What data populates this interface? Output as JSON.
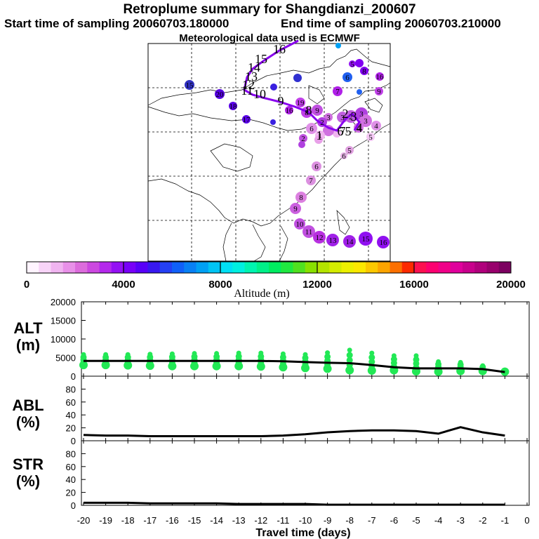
{
  "header": {
    "title": "Retroplume summary for Shangdianzi_200607",
    "start_label": "Start time of sampling 20060703.180000",
    "end_label": "End time of sampling 20060703.210000",
    "met_label": "Meteorological data used is ECMWF"
  },
  "colorbar": {
    "ticks": [
      "0",
      "4000",
      "8000",
      "12000",
      "16000",
      "20000"
    ],
    "label": "Altitude (m)",
    "colors": [
      "#fff4ff",
      "#f8d4f8",
      "#f0b4f0",
      "#e890e8",
      "#dc6cdc",
      "#cc48e0",
      "#b428ec",
      "#9410f4",
      "#7800f8",
      "#5800f8",
      "#3818f0",
      "#2440f4",
      "#1060f8",
      "#0880f4",
      "#00a0f4",
      "#00c4f4",
      "#00e0f4",
      "#00f0e0",
      "#00f4b0",
      "#00f088",
      "#00ec60",
      "#20e840",
      "#50e020",
      "#88e000",
      "#b4e400",
      "#d4ec00",
      "#ecf000",
      "#fce800",
      "#fcc800",
      "#fca400",
      "#fc7000",
      "#fc2a00",
      "#fc1050",
      "#fc0070",
      "#f00088",
      "#e0009c",
      "#c8008c",
      "#b0007c",
      "#98006c",
      "#7c0060"
    ]
  },
  "map": {
    "plume_labels": [
      "1",
      "2",
      "3",
      "4",
      "5",
      "6",
      "7",
      "8",
      "9",
      "10",
      "11",
      "12",
      "13",
      "14",
      "15",
      "16",
      "17",
      "18",
      "19",
      "20"
    ],
    "track_labels": [
      "1",
      "2",
      "3",
      "4",
      "5",
      "6",
      "7",
      "8",
      "9",
      "10",
      "11",
      "12",
      "13",
      "14",
      "15",
      "16"
    ]
  },
  "panels": {
    "alt_label": "ALT\n(m)",
    "abl_label": "ABL\n(%)",
    "str_label": "STR\n(%)",
    "alt_ticks": [
      "20000",
      "15000",
      "10000",
      "5000",
      "0"
    ],
    "pct_ticks": [
      "80",
      "60",
      "40",
      "20",
      "0"
    ],
    "x_ticks": [
      "-20",
      "-19",
      "-18",
      "-17",
      "-16",
      "-15",
      "-14",
      "-13",
      "-12",
      "-11",
      "-10",
      "-9",
      "-8",
      "-7",
      "-6",
      "-5",
      "-4",
      "-3",
      "-2",
      "-1",
      "0"
    ],
    "x_label": "Travel time (days)"
  },
  "chart_data": [
    {
      "type": "line",
      "title": "ALT (m)",
      "x": [
        -20,
        -19,
        -18,
        -17,
        -16,
        -15,
        -14,
        -13,
        -12,
        -11,
        -10,
        -9,
        -8,
        -7,
        -6,
        -5,
        -4,
        -3,
        -2,
        -1
      ],
      "values": [
        4100,
        4100,
        4100,
        4100,
        4100,
        4100,
        4100,
        4100,
        4100,
        4000,
        3800,
        3600,
        3500,
        3000,
        2400,
        2100,
        2100,
        2100,
        1900,
        1100
      ],
      "ylim": [
        0,
        20000
      ],
      "xlim": [
        -20,
        0
      ],
      "scatter_high": [
        5800,
        5800,
        5800,
        5900,
        6000,
        6100,
        6100,
        6200,
        6200,
        6000,
        5800,
        6300,
        7000,
        6200,
        5500,
        5500,
        3900,
        3700,
        2800,
        1500
      ],
      "scatter_low": [
        3000,
        3000,
        2900,
        2800,
        2700,
        2700,
        2700,
        2700,
        2600,
        2400,
        2200,
        2000,
        1600,
        1500,
        1600,
        1300,
        1200,
        1400,
        1400,
        1200
      ]
    },
    {
      "type": "line",
      "title": "ABL (%)",
      "x": [
        -20,
        -19,
        -18,
        -17,
        -16,
        -15,
        -14,
        -13,
        -12,
        -11,
        -10,
        -9,
        -8,
        -7,
        -6,
        -5,
        -4,
        -3,
        -2,
        -1
      ],
      "values": [
        9,
        8,
        8,
        7,
        7,
        7,
        7,
        7,
        7,
        8,
        10,
        13,
        15,
        16,
        16,
        15,
        11,
        21,
        13,
        8
      ],
      "ylim": [
        0,
        100
      ],
      "xlim": [
        -20,
        0
      ]
    },
    {
      "type": "line",
      "title": "STR (%)",
      "x": [
        -20,
        -19,
        -18,
        -17,
        -16,
        -15,
        -14,
        -13,
        -12,
        -11,
        -10,
        -9,
        -8,
        -7,
        -6,
        -5,
        -4,
        -3,
        -2,
        -1
      ],
      "values": [
        4,
        4,
        4,
        3,
        3,
        3,
        3,
        2,
        2,
        2,
        2,
        1,
        1,
        1,
        1,
        1,
        1,
        1,
        1,
        1
      ],
      "ylim": [
        0,
        100
      ],
      "xlim": [
        -20,
        0
      ]
    }
  ]
}
